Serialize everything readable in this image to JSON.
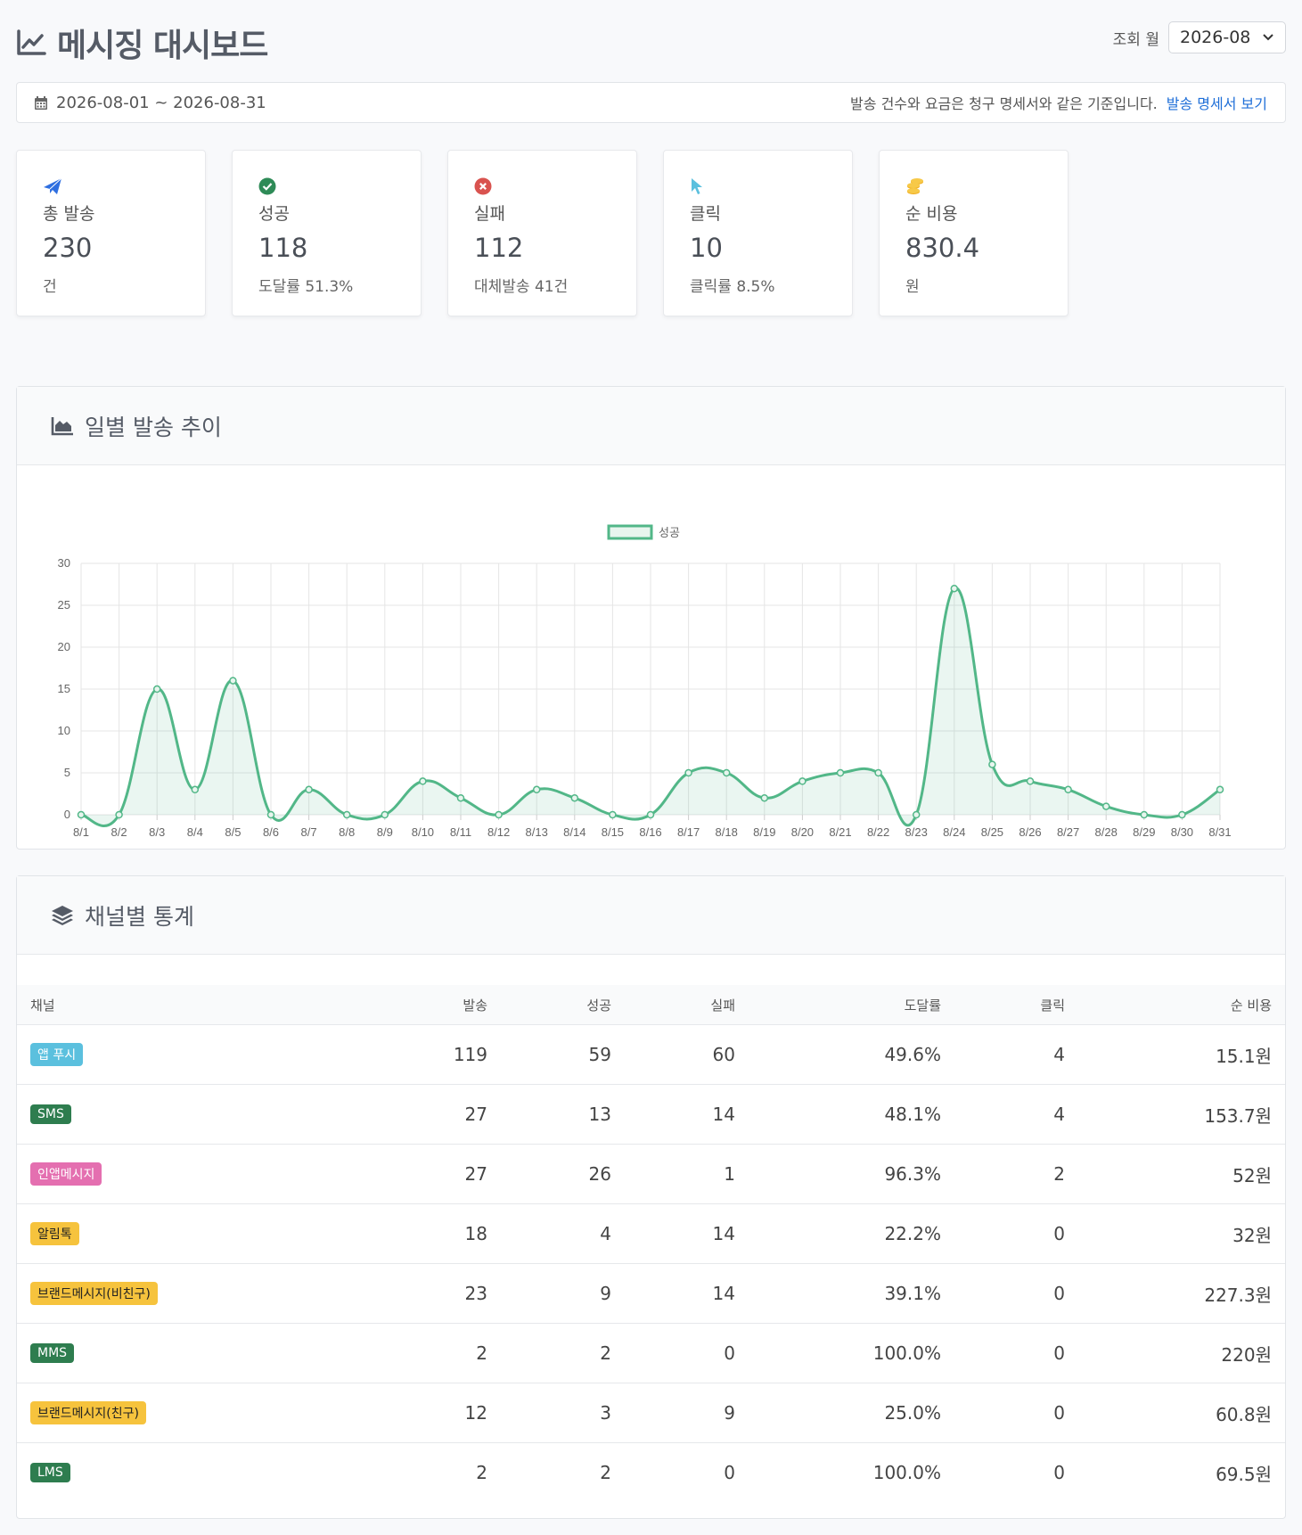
{
  "header": {
    "title": "메시징 대시보드",
    "month_label": "조회 월",
    "month_value": "2026-08"
  },
  "period": {
    "range": "2026-08-01 ~ 2026-08-31",
    "note": "발송 건수와 요금은 청구 명세서와 같은 기준입니다.",
    "link": "발송 명세서 보기"
  },
  "stats": [
    {
      "icon": "paper-plane-icon",
      "color": "#2f6fe0",
      "label": "총 발송",
      "value": "230",
      "sub": "건"
    },
    {
      "icon": "check-circle-icon",
      "color": "#2e8b57",
      "label": "성공",
      "value": "118",
      "sub": "도달률 51.3%"
    },
    {
      "icon": "x-circle-icon",
      "color": "#d9534f",
      "label": "실패",
      "value": "112",
      "sub": "대체발송 41건"
    },
    {
      "icon": "cursor-icon",
      "color": "#5bc0de",
      "label": "클릭",
      "value": "10",
      "sub": "클릭률 8.5%"
    },
    {
      "icon": "coins-icon",
      "color": "#f0ad1f",
      "label": "순 비용",
      "value": "830.4",
      "sub": "원"
    }
  ],
  "chart_panel": {
    "title": "일별 발송 추이"
  },
  "chart_data": {
    "type": "line",
    "categories": [
      "8/1",
      "8/2",
      "8/3",
      "8/4",
      "8/5",
      "8/6",
      "8/7",
      "8/8",
      "8/9",
      "8/10",
      "8/11",
      "8/12",
      "8/13",
      "8/14",
      "8/15",
      "8/16",
      "8/17",
      "8/18",
      "8/19",
      "8/20",
      "8/21",
      "8/22",
      "8/23",
      "8/24",
      "8/25",
      "8/26",
      "8/27",
      "8/28",
      "8/29",
      "8/30",
      "8/31"
    ],
    "series": [
      {
        "name": "성공",
        "color": "#52b788",
        "values": [
          0,
          0,
          15,
          3,
          16,
          0,
          3,
          0,
          0,
          4,
          2,
          0,
          3,
          2,
          0,
          0,
          5,
          5,
          2,
          4,
          5,
          5,
          0,
          27,
          6,
          4,
          3,
          1,
          0,
          0,
          3
        ]
      }
    ],
    "ylim": [
      0,
      30
    ],
    "yticks": [
      0,
      5,
      10,
      15,
      20,
      25,
      30
    ],
    "grid": true,
    "legend": "top-center",
    "area_fill": true
  },
  "table_panel": {
    "title": "채널별 통계",
    "columns": [
      "채널",
      "발송",
      "성공",
      "실패",
      "도달률",
      "클릭",
      "순 비용"
    ],
    "rows": [
      {
        "channel": "앱 푸시",
        "badge_bg": "#5bc0de",
        "badge_fg": "#ffffff",
        "send": "119",
        "success": "59",
        "fail": "60",
        "rate": "49.6%",
        "click": "4",
        "cost": "15.1원"
      },
      {
        "channel": "SMS",
        "badge_bg": "#2e7d4f",
        "badge_fg": "#ffffff",
        "send": "27",
        "success": "13",
        "fail": "14",
        "rate": "48.1%",
        "click": "4",
        "cost": "153.7원"
      },
      {
        "channel": "인앱메시지",
        "badge_bg": "#e46fb0",
        "badge_fg": "#ffffff",
        "send": "27",
        "success": "26",
        "fail": "1",
        "rate": "96.3%",
        "click": "2",
        "cost": "52원"
      },
      {
        "channel": "알림톡",
        "badge_bg": "#f6c33d",
        "badge_fg": "#222222",
        "send": "18",
        "success": "4",
        "fail": "14",
        "rate": "22.2%",
        "click": "0",
        "cost": "32원"
      },
      {
        "channel": "브랜드메시지(비친구)",
        "badge_bg": "#f6c33d",
        "badge_fg": "#222222",
        "send": "23",
        "success": "9",
        "fail": "14",
        "rate": "39.1%",
        "click": "0",
        "cost": "227.3원"
      },
      {
        "channel": "MMS",
        "badge_bg": "#2e7d4f",
        "badge_fg": "#ffffff",
        "send": "2",
        "success": "2",
        "fail": "0",
        "rate": "100.0%",
        "click": "0",
        "cost": "220원"
      },
      {
        "channel": "브랜드메시지(친구)",
        "badge_bg": "#f6c33d",
        "badge_fg": "#222222",
        "send": "12",
        "success": "3",
        "fail": "9",
        "rate": "25.0%",
        "click": "0",
        "cost": "60.8원"
      },
      {
        "channel": "LMS",
        "badge_bg": "#2e7d4f",
        "badge_fg": "#ffffff",
        "send": "2",
        "success": "2",
        "fail": "0",
        "rate": "100.0%",
        "click": "0",
        "cost": "69.5원"
      }
    ]
  }
}
